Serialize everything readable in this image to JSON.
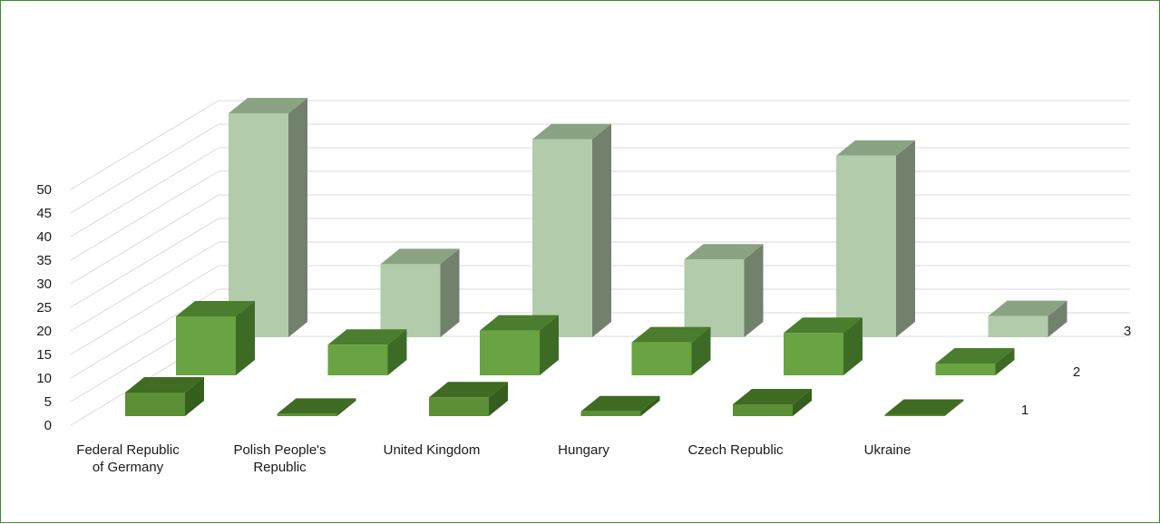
{
  "chart_data": {
    "type": "bar3d",
    "title": "",
    "xlabel": "",
    "ylabel": "",
    "ylim": [
      0,
      50
    ],
    "yticks": [
      0,
      5,
      10,
      15,
      20,
      25,
      30,
      35,
      40,
      45,
      50
    ],
    "categories": [
      [
        "Federal Republic",
        "of Germany"
      ],
      [
        "Polish People's",
        "Republic"
      ],
      [
        "United Kingdom"
      ],
      [
        "Hungary"
      ],
      [
        "Czech Republic"
      ],
      [
        "Ukraine"
      ]
    ],
    "series": [
      {
        "label": "1",
        "values": [
          5,
          0.5,
          4,
          1,
          2.5,
          0.2
        ]
      },
      {
        "label": "2",
        "values": [
          12.5,
          6.5,
          9.5,
          7,
          9,
          2.5
        ]
      },
      {
        "label": "3",
        "values": [
          47.5,
          15.5,
          42,
          16.5,
          38.5,
          4.5
        ]
      }
    ],
    "colors": {
      "series1": {
        "front": "#5d8f36",
        "top": "#3f6b22",
        "side": "#365e1e"
      },
      "series2": {
        "front": "#6aa342",
        "top": "#4a7d2e",
        "side": "#3d6b26"
      },
      "series3": {
        "front": "#b2ccab",
        "top": "#8aa383",
        "side": "#72816c"
      }
    },
    "grid": true,
    "legend": "none"
  }
}
